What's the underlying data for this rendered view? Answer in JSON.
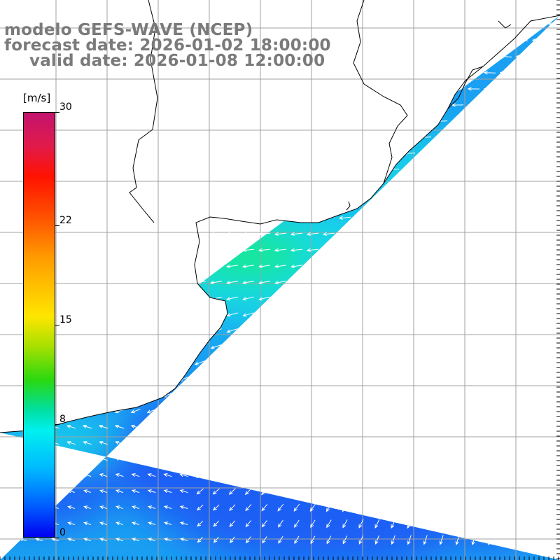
{
  "titles": {
    "line1": "modelo GEFS-WAVE (NCEP)",
    "line2": "forecast date: 2026-01-02 18:00:00",
    "line3": "valid date: 2026-01-08 12:00:00"
  },
  "colorbar": {
    "unit": "[m/s]",
    "ticks": [
      {
        "label": "30",
        "value": 30
      },
      {
        "label": "22",
        "value": 22
      },
      {
        "label": "15",
        "value": 15
      },
      {
        "label": "8",
        "value": 8
      },
      {
        "label": "0",
        "value": 0
      }
    ],
    "colors": [
      "#0000f0",
      "#005aff",
      "#00b8ff",
      "#00f0f0",
      "#00e0a0",
      "#2ad810",
      "#a8e000",
      "#ffe600",
      "#ff9a00",
      "#ff5400",
      "#ff1200",
      "#e21a4a",
      "#c2146e"
    ]
  },
  "map": {
    "land_color": "#ffffff",
    "grid_color": "#a0a0a0",
    "coast_color": "#000000",
    "vector_color": "#ffffff",
    "field_colors": {
      "low": "#1f5ff5",
      "mid": "#1aa0f2",
      "high": "#16d6e8",
      "peak": "#12e890"
    }
  }
}
